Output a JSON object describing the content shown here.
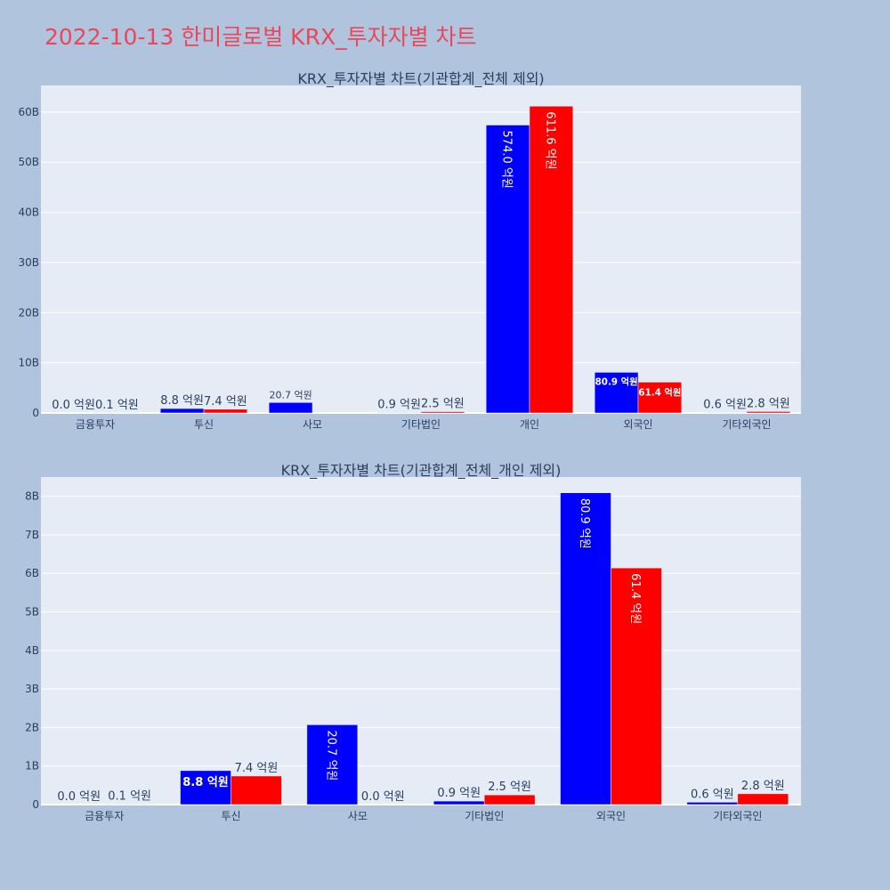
{
  "page": {
    "title": "2022-10-13 한미글로벌 KRX_투자자별 차트",
    "title_color": "#e8485a",
    "background": "#b0c4de",
    "plot_background": "#e5ecf6"
  },
  "chart_data": [
    {
      "type": "bar",
      "title": "KRX_투자자별 차트(기관합계_전체 제외)",
      "categories": [
        "금융투자",
        "투신",
        "사모",
        "기타법인",
        "개인",
        "외국인",
        "기타외국인"
      ],
      "series": [
        {
          "color": "#0000ff",
          "values": [
            0.0,
            0.88,
            2.07,
            0.09,
            57.4,
            8.09,
            0.06
          ],
          "labels": [
            "0.0 억원",
            "8.8 억원",
            "20.7 억원",
            "0.9 억원",
            "574.0 억원",
            "80.9 억원",
            "0.6 억원"
          ]
        },
        {
          "color": "#ff0000",
          "values": [
            0.01,
            0.74,
            0.0,
            0.25,
            61.16,
            6.14,
            0.28
          ],
          "labels": [
            "0.1 억원",
            "7.4 억원",
            "",
            "2.5 억원",
            "611.6 억원",
            "61.4 억원",
            "2.8 억원"
          ]
        }
      ],
      "yticks": [
        0,
        10,
        20,
        30,
        40,
        50,
        60
      ],
      "ytick_labels": [
        "0",
        "10B",
        "20B",
        "30B",
        "40B",
        "50B",
        "60B"
      ],
      "ylim": [
        0,
        65.3
      ],
      "grid": true
    },
    {
      "type": "bar",
      "title": "KRX_투자자별 차트(기관합계_전체_개인 제외)",
      "categories": [
        "금융투자",
        "투신",
        "사모",
        "기타법인",
        "외국인",
        "기타외국인"
      ],
      "series": [
        {
          "color": "#0000ff",
          "values": [
            0.0,
            0.88,
            2.07,
            0.09,
            8.09,
            0.06
          ],
          "labels": [
            "0.0 억원",
            "8.8 억원",
            "20.7 억원",
            "0.9 억원",
            "80.9 억원",
            "0.6 억원"
          ]
        },
        {
          "color": "#ff0000",
          "values": [
            0.01,
            0.74,
            0.0,
            0.25,
            6.14,
            0.28
          ],
          "labels": [
            "0.1 억원",
            "7.4 억원",
            "0.0 억원",
            "2.5 억원",
            "61.4 억원",
            "2.8 억원"
          ]
        }
      ],
      "yticks": [
        0,
        1,
        2,
        3,
        4,
        5,
        6,
        7,
        8
      ],
      "ytick_labels": [
        "0",
        "1B",
        "2B",
        "3B",
        "4B",
        "5B",
        "6B",
        "7B",
        "8B"
      ],
      "ylim": [
        0,
        8.5
      ],
      "grid": true
    }
  ]
}
